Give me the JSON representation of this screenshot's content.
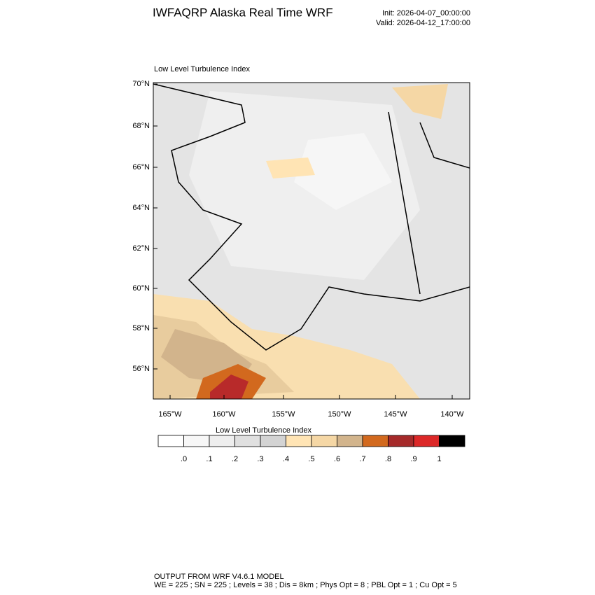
{
  "header": {
    "title": "IWFAQRP Alaska Real Time WRF",
    "init": "Init: 2026-04-07_00:00:00",
    "valid": "Valid: 2026-04-12_17:00:00"
  },
  "map": {
    "title": "Low Level Turbulence Index",
    "lat_labels": [
      "70°N",
      "68°N",
      "66°N",
      "64°N",
      "62°N",
      "60°N",
      "58°N",
      "56°N"
    ],
    "lon_labels": [
      "165°W",
      "160°W",
      "155°W",
      "150°W",
      "145°W",
      "140°W"
    ]
  },
  "colorbar": {
    "title": "Low Level Turbulence Index",
    "colors": [
      "#ffffff",
      "#f7f7f7",
      "#eeeeee",
      "#e0e0e0",
      "#d3d3d3",
      "#ffe4b4",
      "#f5d7a5",
      "#d2b48c",
      "#d2691e",
      "#a52a2a",
      "#dc2828",
      "#000000"
    ],
    "labels": [
      ".0",
      ".1",
      ".2",
      ".3",
      ".4",
      ".5",
      ".6",
      ".7",
      ".8",
      ".9",
      "1"
    ]
  },
  "footer": {
    "line1": "OUTPUT FROM WRF V4.6.1 MODEL",
    "line2": "WE = 225 ; SN = 225 ; Levels = 38 ; Dis = 8km ; Phys Opt = 8 ; PBL Opt = 1 ; Cu Opt = 5"
  }
}
